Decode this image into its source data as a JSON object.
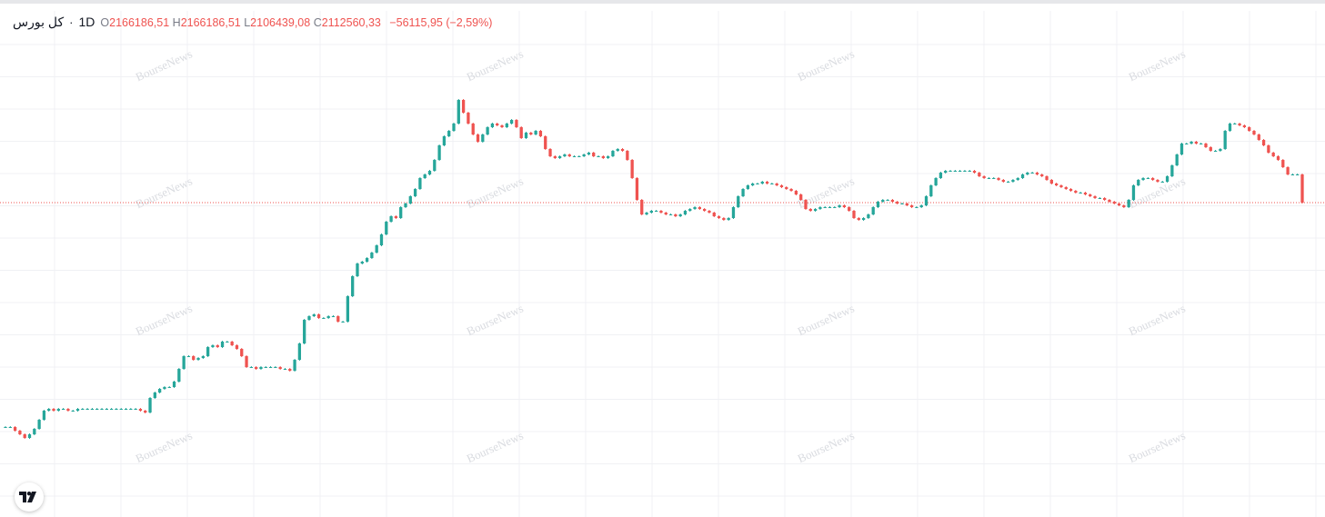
{
  "legend": {
    "symbol": "کل بورس",
    "separator": "·",
    "interval": "1D",
    "open_label": "O",
    "open": "2166186,51",
    "high_label": "H",
    "high": "2166186,51",
    "low_label": "L",
    "low": "2106439,08",
    "close_label": "C",
    "close": "2112560,33",
    "change": "−56115,95 (−2,59%)"
  },
  "watermark_text": "BourseNews",
  "colors": {
    "up": "#26a69a",
    "down": "#ef5350",
    "grid": "#f0f1f4",
    "price_line": "#ef5350"
  },
  "icons": {
    "logo": "tradingview-logo-icon"
  },
  "chart_data": {
    "type": "candlestick",
    "interval": "1D",
    "last_close": 2112560.33,
    "ylim": [
      1310000,
      2560000
    ],
    "closes": [
      1495000,
      1495000,
      1485000,
      1475000,
      1465000,
      1475000,
      1490000,
      1515000,
      1540000,
      1545000,
      1540000,
      1545000,
      1545000,
      1540000,
      1540000,
      1545000,
      1545000,
      1545000,
      1545000,
      1545000,
      1545000,
      1545000,
      1545000,
      1545000,
      1545000,
      1545000,
      1545000,
      1545000,
      1540000,
      1535000,
      1575000,
      1590000,
      1600000,
      1605000,
      1605000,
      1620000,
      1655000,
      1690000,
      1690000,
      1680000,
      1685000,
      1690000,
      1715000,
      1720000,
      1715000,
      1730000,
      1730000,
      1720000,
      1710000,
      1690000,
      1660000,
      1660000,
      1655000,
      1660000,
      1660000,
      1660000,
      1660000,
      1655000,
      1655000,
      1650000,
      1680000,
      1725000,
      1790000,
      1800000,
      1805000,
      1795000,
      1795000,
      1800000,
      1800000,
      1785000,
      1785000,
      1855000,
      1910000,
      1945000,
      1950000,
      1960000,
      1975000,
      1995000,
      2025000,
      2060000,
      2075000,
      2070000,
      2100000,
      2110000,
      2130000,
      2150000,
      2180000,
      2190000,
      2200000,
      2230000,
      2270000,
      2295000,
      2310000,
      2330000,
      2395000,
      2360000,
      2330000,
      2300000,
      2280000,
      2300000,
      2320000,
      2330000,
      2325000,
      2320000,
      2330000,
      2340000,
      2320000,
      2290000,
      2305000,
      2300000,
      2310000,
      2295000,
      2260000,
      2240000,
      2235000,
      2240000,
      2245000,
      2240000,
      2240000,
      2240000,
      2245000,
      2250000,
      2240000,
      2240000,
      2235000,
      2240000,
      2255000,
      2260000,
      2255000,
      2230000,
      2180000,
      2120000,
      2080000,
      2085000,
      2090000,
      2090000,
      2085000,
      2080000,
      2080000,
      2075000,
      2080000,
      2090000,
      2095000,
      2100000,
      2095000,
      2090000,
      2085000,
      2075000,
      2070000,
      2065000,
      2070000,
      2100000,
      2130000,
      2150000,
      2160000,
      2165000,
      2165000,
      2170000,
      2165000,
      2165000,
      2160000,
      2155000,
      2150000,
      2145000,
      2135000,
      2120000,
      2095000,
      2090000,
      2095000,
      2100000,
      2100000,
      2100000,
      2100000,
      2105000,
      2100000,
      2090000,
      2070000,
      2065000,
      2070000,
      2080000,
      2100000,
      2115000,
      2120000,
      2120000,
      2115000,
      2110000,
      2110000,
      2105000,
      2100000,
      2100000,
      2105000,
      2130000,
      2160000,
      2180000,
      2195000,
      2200000,
      2200000,
      2200000,
      2200000,
      2200000,
      2200000,
      2195000,
      2185000,
      2180000,
      2180000,
      2180000,
      2175000,
      2170000,
      2170000,
      2175000,
      2180000,
      2190000,
      2195000,
      2195000,
      2190000,
      2185000,
      2175000,
      2165000,
      2160000,
      2155000,
      2150000,
      2145000,
      2140000,
      2140000,
      2135000,
      2130000,
      2125000,
      2125000,
      2120000,
      2115000,
      2110000,
      2105000,
      2100000,
      2120000,
      2160000,
      2175000,
      2180000,
      2180000,
      2175000,
      2170000,
      2170000,
      2185000,
      2215000,
      2245000,
      2275000,
      2275000,
      2280000,
      2275000,
      2275000,
      2265000,
      2255000,
      2255000,
      2260000,
      2310000,
      2330000,
      2330000,
      2325000,
      2320000,
      2310000,
      2300000,
      2285000,
      2270000,
      2250000,
      2240000,
      2230000,
      2210000,
      2190000,
      2190000,
      2190000,
      2112560.33
    ]
  }
}
